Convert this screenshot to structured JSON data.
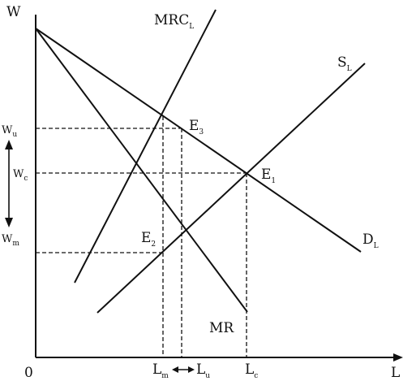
{
  "axes": {
    "y_label": "W",
    "x_label": "L",
    "origin_label": "0"
  },
  "curves": {
    "mrc": {
      "main": "MRC",
      "sub": "L"
    },
    "supply": {
      "main": "S",
      "sub": "L"
    },
    "demand": {
      "main": "D",
      "sub": "L"
    },
    "mr": {
      "main": "MR",
      "sub": ""
    }
  },
  "points": {
    "e1": {
      "main": "E",
      "sub": "1"
    },
    "e2": {
      "main": "E",
      "sub": "2"
    },
    "e3": {
      "main": "E",
      "sub": "3"
    }
  },
  "wage_ticks": {
    "wu": {
      "main": "W",
      "sub": "u"
    },
    "wc": {
      "main": "W",
      "sub": "c"
    },
    "wm": {
      "main": "W",
      "sub": "m"
    }
  },
  "labor_ticks": {
    "lm": {
      "main": "L",
      "sub": "m"
    },
    "lu": {
      "main": "L",
      "sub": "u"
    },
    "lc": {
      "main": "L",
      "sub": "c"
    }
  }
}
